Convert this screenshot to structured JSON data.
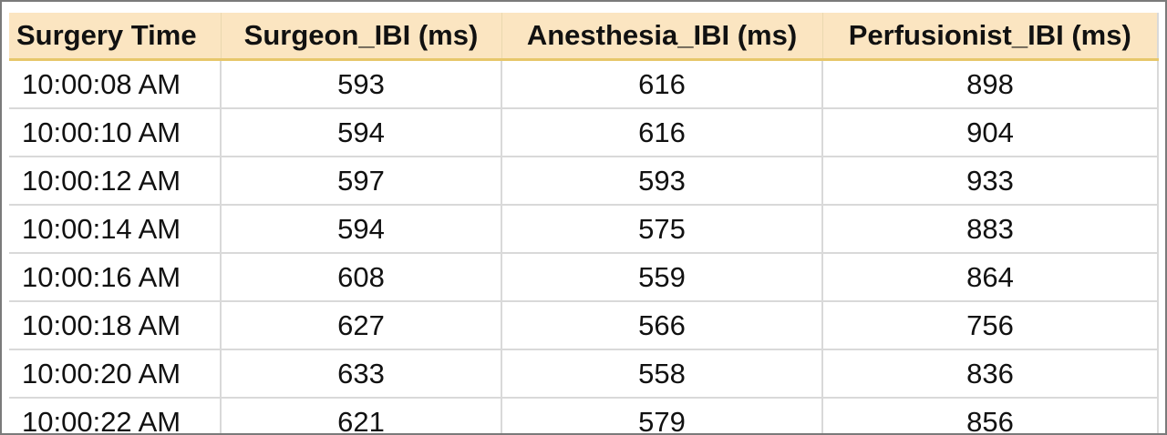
{
  "table": {
    "columns": [
      "Surgery Time",
      "Surgeon_IBI (ms)",
      "Anesthesia_IBI (ms)",
      "Perfusionist_IBI (ms)"
    ],
    "rows": [
      [
        "10:00:08 AM",
        "593",
        "616",
        "898"
      ],
      [
        "10:00:10 AM",
        "594",
        "616",
        "904"
      ],
      [
        "10:00:12 AM",
        "597",
        "593",
        "933"
      ],
      [
        "10:00:14 AM",
        "594",
        "575",
        "883"
      ],
      [
        "10:00:16 AM",
        "608",
        "559",
        "864"
      ],
      [
        "10:00:18 AM",
        "627",
        "566",
        "756"
      ],
      [
        "10:00:20 AM",
        "633",
        "558",
        "836"
      ],
      [
        "10:00:22 AM",
        "621",
        "579",
        "856"
      ]
    ]
  },
  "colors": {
    "header_background": "#fbe5c1",
    "header_rule": "#e7c76b",
    "gridline": "#d9d9d9",
    "frame": "#7a7a7a"
  }
}
